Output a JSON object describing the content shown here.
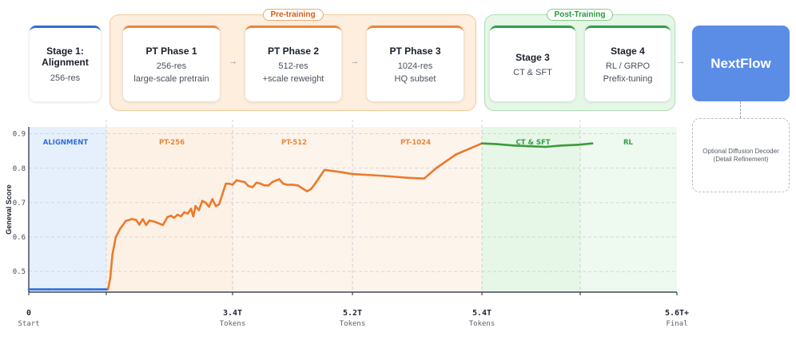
{
  "diagram": {
    "pre_training_label": "Pre-training",
    "post_training_label": "Post-Training",
    "stage1": {
      "title_line1": "Stage 1:",
      "title_line2": "Alignment",
      "sub": "256-res"
    },
    "pt1": {
      "title": "PT Phase 1",
      "sub1": "256-res",
      "sub2": "large-scale pretrain"
    },
    "pt2": {
      "title": "PT Phase 2",
      "sub1": "512-res",
      "sub2": "+scale reweight"
    },
    "pt3": {
      "title": "PT Phase 3",
      "sub1": "1024-res",
      "sub2": "HQ subset"
    },
    "stage3": {
      "title": "Stage 3",
      "sub": "CT & SFT"
    },
    "stage4": {
      "title": "Stage 4",
      "sub1": "RL / GRPO",
      "sub2": "Prefix-tuning"
    },
    "arrow_glyph": "→",
    "final_label": "NextFlow",
    "decoder_line1": "Optional Diffusion Decoder",
    "decoder_line2": "(Detail Refinement)"
  },
  "chart_data": {
    "type": "line",
    "ylabel": "Geneval Score",
    "ylim": [
      0.44,
      0.92
    ],
    "yticks": [
      "0.5",
      "0.6",
      "0.7",
      "0.8",
      "0.9"
    ],
    "xticks": [
      {
        "value": "0",
        "sub": "Start",
        "x": 0
      },
      {
        "value": "3.4T",
        "sub": "Tokens",
        "x": 3.4
      },
      {
        "value": "5.2T",
        "sub": "Tokens",
        "x": 5.2
      },
      {
        "value": "5.4T",
        "sub": "Tokens",
        "x": 5.4
      },
      {
        "value": "5.6T+",
        "sub": "Final",
        "x": 5.6
      }
    ],
    "regions": [
      {
        "label": "ALIGNMENT",
        "color": "#2f6fd6",
        "fill": "#e6f0fc"
      },
      {
        "label": "PT-256",
        "color": "#e8873a",
        "fill": "#fdf1e6"
      },
      {
        "label": "PT-512",
        "color": "#e8873a",
        "fill": "#fdf4ec"
      },
      {
        "label": "PT-1024",
        "color": "#e8873a",
        "fill": "#fdf4ec"
      },
      {
        "label": "CT & SFT",
        "color": "#2fa04a",
        "fill": "#e6f7e8"
      },
      {
        "label": "RL",
        "color": "#2fa04a",
        "fill": "#eef9ef"
      }
    ],
    "series": [
      {
        "values": [
          [
            0,
            0.448
          ],
          [
            0.3,
            0.448
          ],
          [
            0.6,
            0.448
          ],
          [
            0.9,
            0.448
          ],
          [
            1.18,
            0.448
          ],
          [
            1.22,
            0.48
          ],
          [
            1.26,
            0.55
          ],
          [
            1.32,
            0.6
          ],
          [
            1.4,
            0.625
          ],
          [
            1.5,
            0.647
          ],
          [
            1.6,
            0.652
          ],
          [
            1.68,
            0.65
          ],
          [
            1.74,
            0.636
          ],
          [
            1.8,
            0.652
          ],
          [
            1.86,
            0.635
          ],
          [
            1.92,
            0.648
          ],
          [
            2.0,
            0.645
          ],
          [
            2.08,
            0.64
          ],
          [
            2.16,
            0.635
          ],
          [
            2.24,
            0.658
          ],
          [
            2.3,
            0.662
          ],
          [
            2.36,
            0.656
          ],
          [
            2.42,
            0.665
          ],
          [
            2.48,
            0.66
          ],
          [
            2.54,
            0.672
          ],
          [
            2.6,
            0.668
          ],
          [
            2.66,
            0.682
          ],
          [
            2.7,
            0.66
          ],
          [
            2.74,
            0.69
          ],
          [
            2.8,
            0.678
          ],
          [
            2.86,
            0.705
          ],
          [
            2.92,
            0.7
          ],
          [
            2.98,
            0.688
          ],
          [
            3.04,
            0.71
          ],
          [
            3.1,
            0.69
          ],
          [
            3.16,
            0.695
          ],
          [
            3.22,
            0.725
          ],
          [
            3.28,
            0.755
          ],
          [
            3.34,
            0.755
          ],
          [
            3.4,
            0.752
          ],
          [
            3.46,
            0.765
          ],
          [
            3.52,
            0.762
          ],
          [
            3.58,
            0.76
          ],
          [
            3.64,
            0.748
          ],
          [
            3.7,
            0.745
          ],
          [
            3.76,
            0.758
          ],
          [
            3.82,
            0.755
          ],
          [
            3.88,
            0.75
          ],
          [
            3.94,
            0.75
          ],
          [
            4.0,
            0.76
          ],
          [
            4.06,
            0.765
          ],
          [
            4.1,
            0.768
          ],
          [
            4.16,
            0.755
          ],
          [
            4.22,
            0.752
          ],
          [
            4.3,
            0.752
          ],
          [
            4.38,
            0.75
          ],
          [
            4.46,
            0.74
          ],
          [
            4.52,
            0.733
          ],
          [
            4.58,
            0.74
          ],
          [
            4.64,
            0.755
          ],
          [
            4.72,
            0.778
          ],
          [
            4.78,
            0.795
          ],
          [
            4.9,
            0.792
          ],
          [
            5.05,
            0.788
          ],
          [
            5.2,
            0.783
          ],
          [
            5.35,
            0.778
          ],
          [
            5.48,
            0.772
          ],
          [
            5.56,
            0.77
          ],
          [
            5.62,
            0.8
          ],
          [
            5.72,
            0.84
          ],
          [
            5.85,
            0.872
          ],
          [
            5.98,
            0.87
          ],
          [
            6.12,
            0.866
          ],
          [
            6.26,
            0.864
          ],
          [
            6.4,
            0.862
          ],
          [
            6.54,
            0.866
          ],
          [
            6.68,
            0.868
          ],
          [
            6.8,
            0.872
          ]
        ]
      }
    ],
    "grid": true
  }
}
